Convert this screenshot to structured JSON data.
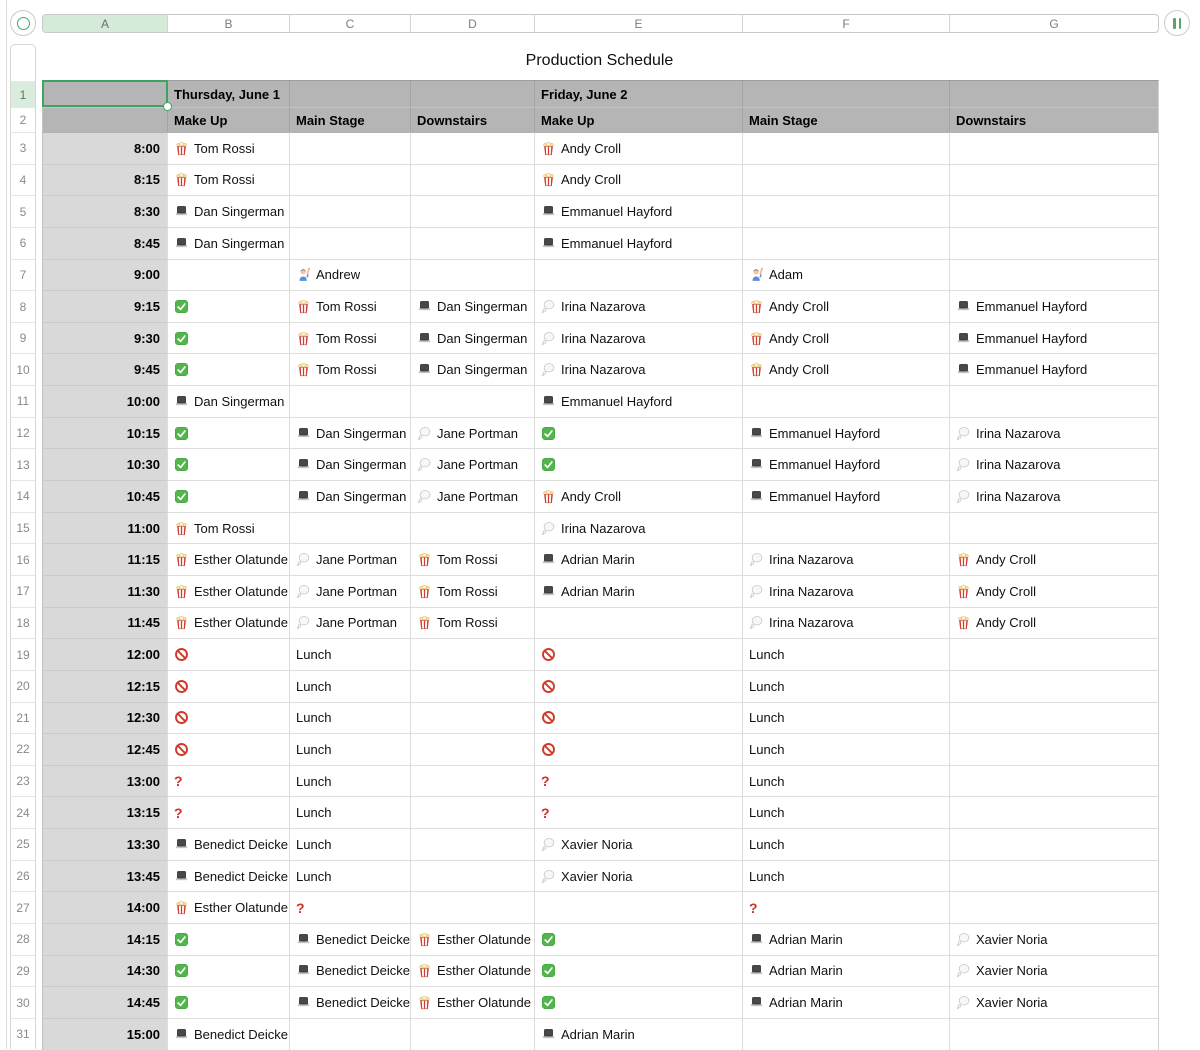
{
  "toolbar": {
    "column_letters": [
      "A",
      "B",
      "C",
      "D",
      "E",
      "F",
      "G"
    ],
    "selected_column": "A",
    "selected_cell": "A1"
  },
  "title": "Production Schedule",
  "header": {
    "row_numbers": [
      1,
      2
    ],
    "days": [
      "",
      "Thursday, June 1",
      "",
      "",
      "Friday, June 2",
      "",
      ""
    ],
    "stages": [
      "",
      "Make Up",
      "Main Stage",
      "Downstairs",
      "Make Up",
      "Main Stage",
      "Downstairs"
    ]
  },
  "icons": {
    "popcorn": "popcorn-icon",
    "laptop": "laptop-icon",
    "check": "check-icon",
    "no-entry": "no-entry-icon",
    "thought-balloon": "thought-balloon-icon",
    "raising-hand": "raising-hand-icon",
    "pause": "pause-icon"
  },
  "colors": {
    "selection_green": "#3fa261",
    "header_gray": "#b5b5b5",
    "time_col_gray": "#d9d9d9",
    "alert_red": "#cd3026"
  },
  "rows": [
    {
      "n": 3,
      "time": "8:00",
      "cells": [
        {
          "icon": "popcorn",
          "name": "Tom Rossi"
        },
        null,
        null,
        {
          "icon": "popcorn",
          "name": "Andy Croll"
        },
        null,
        null
      ]
    },
    {
      "n": 4,
      "time": "8:15",
      "cells": [
        {
          "icon": "popcorn",
          "name": "Tom Rossi"
        },
        null,
        null,
        {
          "icon": "popcorn",
          "name": "Andy Croll"
        },
        null,
        null
      ]
    },
    {
      "n": 5,
      "time": "8:30",
      "cells": [
        {
          "icon": "laptop",
          "name": "Dan Singerman"
        },
        null,
        null,
        {
          "icon": "laptop",
          "name": "Emmanuel Hayford"
        },
        null,
        null
      ]
    },
    {
      "n": 6,
      "time": "8:45",
      "cells": [
        {
          "icon": "laptop",
          "name": "Dan Singerman"
        },
        null,
        null,
        {
          "icon": "laptop",
          "name": "Emmanuel Hayford"
        },
        null,
        null
      ]
    },
    {
      "n": 7,
      "time": "9:00",
      "cells": [
        null,
        {
          "icon": "raising-hand",
          "name": "Andrew"
        },
        null,
        null,
        {
          "icon": "raising-hand",
          "name": "Adam"
        },
        null
      ]
    },
    {
      "n": 8,
      "time": "9:15",
      "cells": [
        {
          "icon": "check"
        },
        {
          "icon": "popcorn",
          "name": "Tom Rossi"
        },
        {
          "icon": "laptop",
          "name": "Dan Singerman"
        },
        {
          "icon": "thought-balloon",
          "name": "Irina Nazarova"
        },
        {
          "icon": "popcorn",
          "name": "Andy Croll"
        },
        {
          "icon": "laptop",
          "name": "Emmanuel Hayford"
        }
      ]
    },
    {
      "n": 9,
      "time": "9:30",
      "cells": [
        {
          "icon": "check"
        },
        {
          "icon": "popcorn",
          "name": "Tom Rossi"
        },
        {
          "icon": "laptop",
          "name": "Dan Singerman"
        },
        {
          "icon": "thought-balloon",
          "name": "Irina Nazarova"
        },
        {
          "icon": "popcorn",
          "name": "Andy Croll"
        },
        {
          "icon": "laptop",
          "name": "Emmanuel Hayford"
        }
      ]
    },
    {
      "n": 10,
      "time": "9:45",
      "cells": [
        {
          "icon": "check"
        },
        {
          "icon": "popcorn",
          "name": "Tom Rossi"
        },
        {
          "icon": "laptop",
          "name": "Dan Singerman"
        },
        {
          "icon": "thought-balloon",
          "name": "Irina Nazarova"
        },
        {
          "icon": "popcorn",
          "name": "Andy Croll"
        },
        {
          "icon": "laptop",
          "name": "Emmanuel Hayford"
        }
      ]
    },
    {
      "n": 11,
      "time": "10:00",
      "cells": [
        {
          "icon": "laptop",
          "name": "Dan Singerman"
        },
        null,
        null,
        {
          "icon": "laptop",
          "name": "Emmanuel Hayford"
        },
        null,
        null
      ]
    },
    {
      "n": 12,
      "time": "10:15",
      "cells": [
        {
          "icon": "check"
        },
        {
          "icon": "laptop",
          "name": "Dan Singerman"
        },
        {
          "icon": "thought-balloon",
          "name": "Jane Portman"
        },
        {
          "icon": "check"
        },
        {
          "icon": "laptop",
          "name": "Emmanuel Hayford"
        },
        {
          "icon": "thought-balloon",
          "name": "Irina Nazarova"
        }
      ]
    },
    {
      "n": 13,
      "time": "10:30",
      "cells": [
        {
          "icon": "check"
        },
        {
          "icon": "laptop",
          "name": "Dan Singerman"
        },
        {
          "icon": "thought-balloon",
          "name": "Jane Portman"
        },
        {
          "icon": "check"
        },
        {
          "icon": "laptop",
          "name": "Emmanuel Hayford"
        },
        {
          "icon": "thought-balloon",
          "name": "Irina Nazarova"
        }
      ]
    },
    {
      "n": 14,
      "time": "10:45",
      "cells": [
        {
          "icon": "check"
        },
        {
          "icon": "laptop",
          "name": "Dan Singerman"
        },
        {
          "icon": "thought-balloon",
          "name": "Jane Portman"
        },
        {
          "icon": "popcorn",
          "name": "Andy Croll"
        },
        {
          "icon": "laptop",
          "name": "Emmanuel Hayford"
        },
        {
          "icon": "thought-balloon",
          "name": "Irina Nazarova"
        }
      ]
    },
    {
      "n": 15,
      "time": "11:00",
      "cells": [
        {
          "icon": "popcorn",
          "name": "Tom Rossi"
        },
        null,
        null,
        {
          "icon": "thought-balloon",
          "name": "Irina Nazarova"
        },
        null,
        null
      ]
    },
    {
      "n": 16,
      "time": "11:15",
      "cells": [
        {
          "icon": "popcorn",
          "name": "Esther Olatunde"
        },
        {
          "icon": "thought-balloon",
          "name": "Jane Portman"
        },
        {
          "icon": "popcorn",
          "name": "Tom Rossi"
        },
        {
          "icon": "laptop",
          "name": "Adrian Marin"
        },
        {
          "icon": "thought-balloon",
          "name": "Irina Nazarova"
        },
        {
          "icon": "popcorn",
          "name": "Andy Croll"
        }
      ]
    },
    {
      "n": 17,
      "time": "11:30",
      "cells": [
        {
          "icon": "popcorn",
          "name": "Esther Olatunde"
        },
        {
          "icon": "thought-balloon",
          "name": "Jane Portman"
        },
        {
          "icon": "popcorn",
          "name": "Tom Rossi"
        },
        {
          "icon": "laptop",
          "name": "Adrian Marin"
        },
        {
          "icon": "thought-balloon",
          "name": "Irina Nazarova"
        },
        {
          "icon": "popcorn",
          "name": "Andy Croll"
        }
      ]
    },
    {
      "n": 18,
      "time": "11:45",
      "cells": [
        {
          "icon": "popcorn",
          "name": "Esther Olatunde"
        },
        {
          "icon": "thought-balloon",
          "name": "Jane Portman"
        },
        {
          "icon": "popcorn",
          "name": "Tom Rossi"
        },
        null,
        {
          "icon": "thought-balloon",
          "name": "Irina Nazarova"
        },
        {
          "icon": "popcorn",
          "name": "Andy Croll"
        }
      ]
    },
    {
      "n": 19,
      "time": "12:00",
      "cells": [
        {
          "icon": "no-entry"
        },
        {
          "text": "Lunch"
        },
        null,
        {
          "icon": "no-entry"
        },
        {
          "text": "Lunch"
        },
        null
      ]
    },
    {
      "n": 20,
      "time": "12:15",
      "cells": [
        {
          "icon": "no-entry"
        },
        {
          "text": "Lunch"
        },
        null,
        {
          "icon": "no-entry"
        },
        {
          "text": "Lunch"
        },
        null
      ]
    },
    {
      "n": 21,
      "time": "12:30",
      "cells": [
        {
          "icon": "no-entry"
        },
        {
          "text": "Lunch"
        },
        null,
        {
          "icon": "no-entry"
        },
        {
          "text": "Lunch"
        },
        null
      ]
    },
    {
      "n": 22,
      "time": "12:45",
      "cells": [
        {
          "icon": "no-entry"
        },
        {
          "text": "Lunch"
        },
        null,
        {
          "icon": "no-entry"
        },
        {
          "text": "Lunch"
        },
        null
      ]
    },
    {
      "n": 23,
      "time": "13:00",
      "cells": [
        {
          "text": "?",
          "alert": true
        },
        {
          "text": "Lunch"
        },
        null,
        {
          "text": "?",
          "alert": true
        },
        {
          "text": "Lunch"
        },
        null
      ]
    },
    {
      "n": 24,
      "time": "13:15",
      "cells": [
        {
          "text": "?",
          "alert": true
        },
        {
          "text": "Lunch"
        },
        null,
        {
          "text": "?",
          "alert": true
        },
        {
          "text": "Lunch"
        },
        null
      ]
    },
    {
      "n": 25,
      "time": "13:30",
      "cells": [
        {
          "icon": "laptop",
          "name": "Benedict Deicke"
        },
        {
          "text": "Lunch"
        },
        null,
        {
          "icon": "thought-balloon",
          "name": "Xavier Noria"
        },
        {
          "text": "Lunch"
        },
        null
      ]
    },
    {
      "n": 26,
      "time": "13:45",
      "cells": [
        {
          "icon": "laptop",
          "name": "Benedict Deicke"
        },
        {
          "text": "Lunch"
        },
        null,
        {
          "icon": "thought-balloon",
          "name": "Xavier Noria"
        },
        {
          "text": "Lunch"
        },
        null
      ]
    },
    {
      "n": 27,
      "time": "14:00",
      "cells": [
        {
          "icon": "popcorn",
          "name": "Esther Olatunde"
        },
        {
          "text": "?",
          "alert": true
        },
        null,
        null,
        {
          "text": "?",
          "alert": true
        },
        null
      ]
    },
    {
      "n": 28,
      "time": "14:15",
      "cells": [
        {
          "icon": "check"
        },
        {
          "icon": "laptop",
          "name": "Benedict Deicke"
        },
        {
          "icon": "popcorn",
          "name": "Esther Olatunde"
        },
        {
          "icon": "check"
        },
        {
          "icon": "laptop",
          "name": "Adrian Marin"
        },
        {
          "icon": "thought-balloon",
          "name": "Xavier Noria"
        }
      ]
    },
    {
      "n": 29,
      "time": "14:30",
      "cells": [
        {
          "icon": "check"
        },
        {
          "icon": "laptop",
          "name": "Benedict Deicke"
        },
        {
          "icon": "popcorn",
          "name": "Esther Olatunde"
        },
        {
          "icon": "check"
        },
        {
          "icon": "laptop",
          "name": "Adrian Marin"
        },
        {
          "icon": "thought-balloon",
          "name": "Xavier Noria"
        }
      ]
    },
    {
      "n": 30,
      "time": "14:45",
      "cells": [
        {
          "icon": "check"
        },
        {
          "icon": "laptop",
          "name": "Benedict Deicke"
        },
        {
          "icon": "popcorn",
          "name": "Esther Olatunde"
        },
        {
          "icon": "check"
        },
        {
          "icon": "laptop",
          "name": "Adrian Marin"
        },
        {
          "icon": "thought-balloon",
          "name": "Xavier Noria"
        }
      ]
    },
    {
      "n": 31,
      "time": "15:00",
      "cells": [
        {
          "icon": "laptop",
          "name": "Benedict Deicke"
        },
        null,
        null,
        {
          "icon": "laptop",
          "name": "Adrian Marin"
        },
        null,
        null
      ]
    }
  ]
}
